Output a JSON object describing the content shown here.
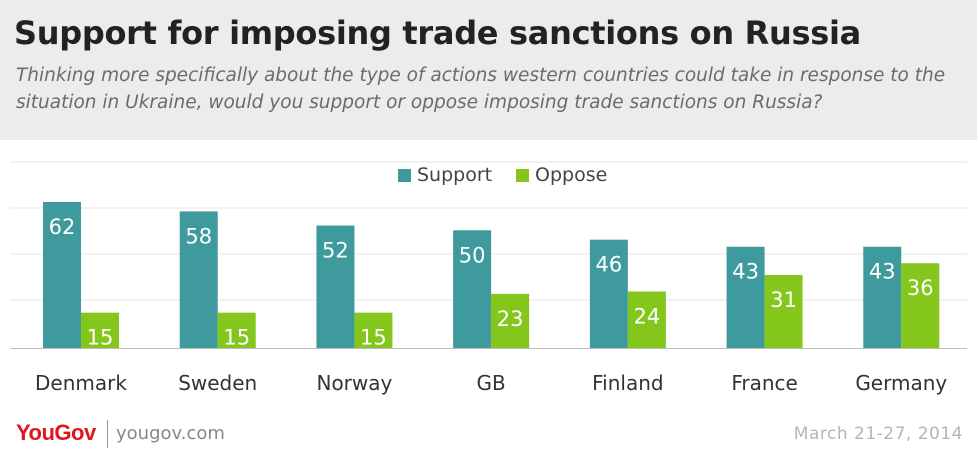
{
  "header": {
    "title": "Support for imposing trade sanctions on Russia",
    "subtitle": "Thinking more specifically about the type of actions western countries could take in response to the situation in Ukraine, would you support or oppose imposing trade sanctions on Russia?"
  },
  "footer": {
    "logo_text": "YouGov",
    "site": "yougov.com",
    "date": "March 21-27, 2014"
  },
  "chart_data": {
    "type": "bar",
    "categories": [
      "Denmark",
      "Sweden",
      "Norway",
      "GB",
      "Finland",
      "France",
      "Germany"
    ],
    "series": [
      {
        "name": "Support",
        "color": "#3f9a9e",
        "values": [
          62,
          58,
          52,
          50,
          46,
          43,
          43
        ]
      },
      {
        "name": "Oppose",
        "color": "#84c61c",
        "values": [
          15,
          15,
          15,
          23,
          24,
          31,
          36
        ]
      }
    ],
    "ylim": [
      0,
      62
    ],
    "legend_position": "top-center",
    "grid": true,
    "data_labels": true
  }
}
